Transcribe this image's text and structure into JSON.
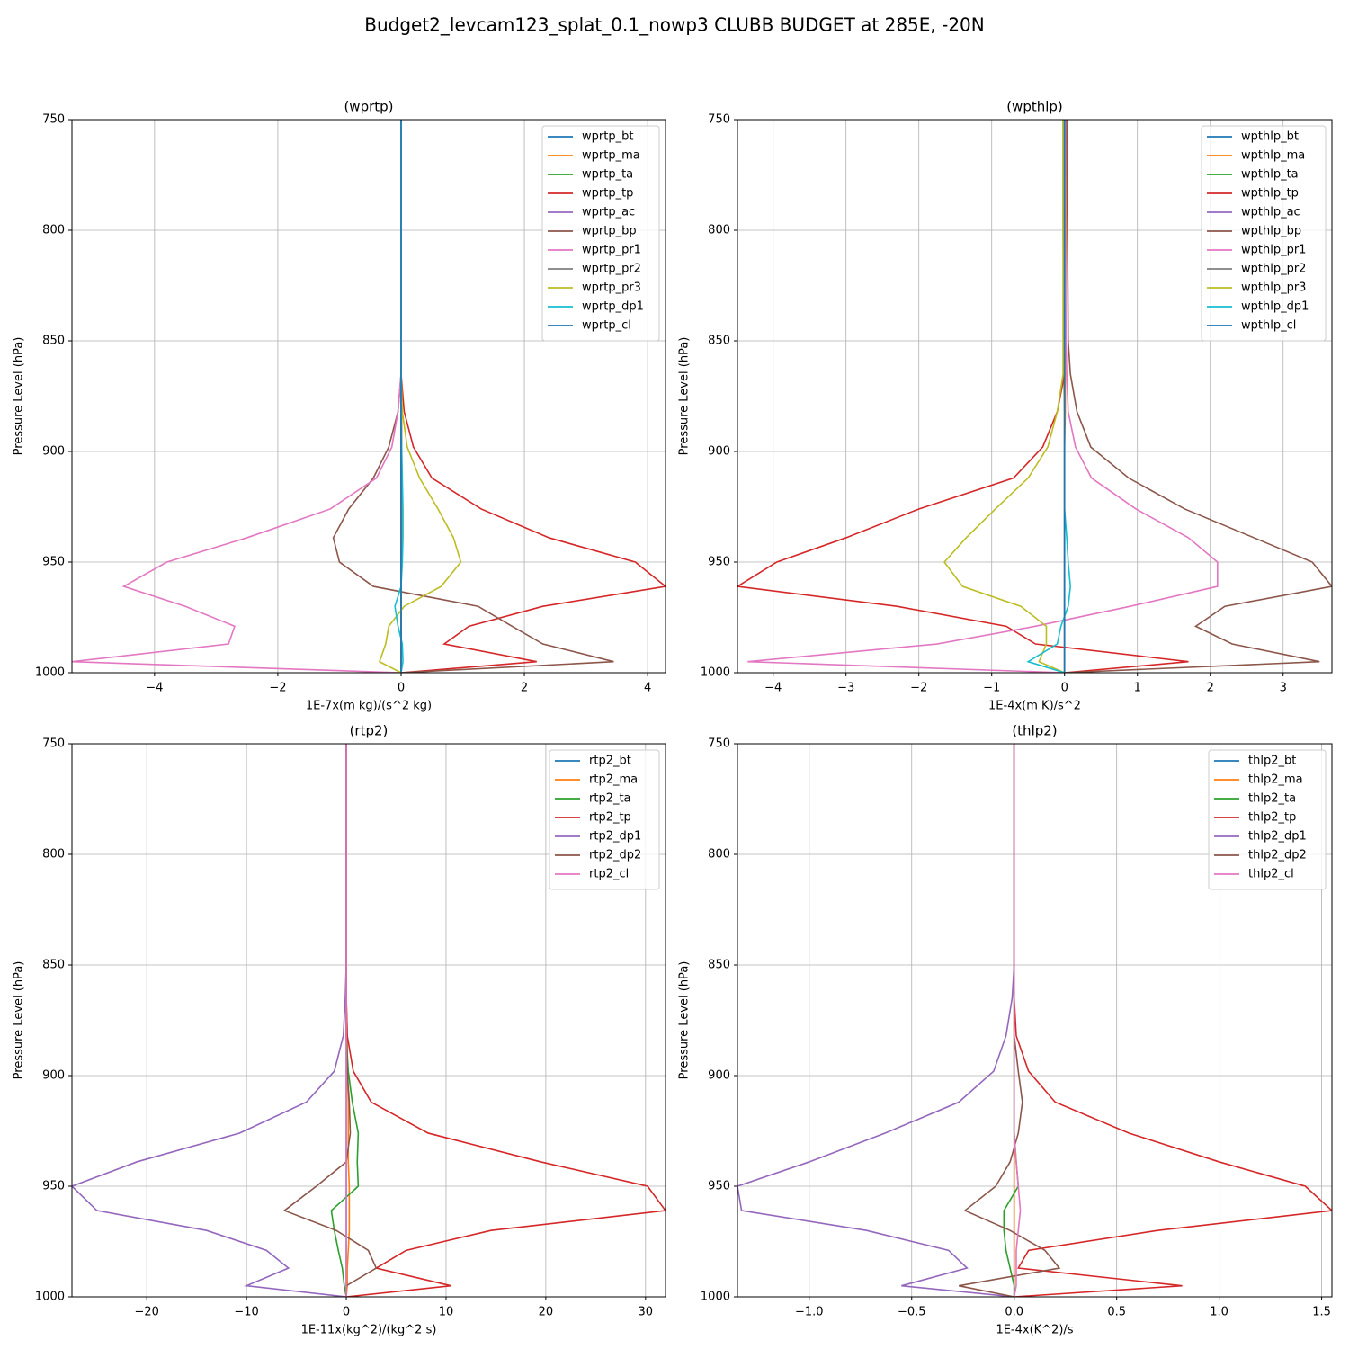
{
  "title": "Budget2_levcam123_splat_0.1_nowp3 CLUBB BUDGET at 285E, -20N",
  "chart_data": [
    {
      "type": "line",
      "title": "(wprtp)",
      "xlabel": "1E-7x(m kg)/(s^2 kg)",
      "ylabel": "Pressure Level (hPa)",
      "y": [
        750,
        800,
        850,
        865,
        882,
        898,
        912,
        926,
        939,
        950,
        961,
        970,
        979,
        987,
        995,
        1000
      ],
      "xlim": [
        -5.34,
        4.29
      ],
      "xticks": [
        {
          "value": -4,
          "label": "−4"
        },
        {
          "value": -2,
          "label": "−2"
        },
        0,
        2,
        4
      ],
      "ylim": [
        1000,
        750
      ],
      "yticks": [
        750,
        800,
        850,
        900,
        950,
        1000
      ],
      "grid": true,
      "legend": "upper right",
      "series": [
        {
          "name": "wprtp_bt",
          "color": "#1f77b4",
          "values": [
            0,
            0,
            0,
            0,
            0,
            0,
            0,
            0,
            0,
            0,
            0,
            0,
            0,
            0,
            0,
            0
          ]
        },
        {
          "name": "wprtp_ma",
          "color": "#ff7f0e",
          "values": [
            0,
            0,
            0,
            0,
            0.01,
            0.01,
            0.01,
            0.01,
            0.01,
            0.01,
            0,
            0,
            0,
            0,
            0,
            0
          ]
        },
        {
          "name": "wprtp_ta",
          "color": "#2ca02c",
          "values": [
            0,
            0,
            0,
            0,
            0,
            0,
            0,
            0,
            0,
            0,
            0,
            0,
            0,
            0,
            0,
            0
          ]
        },
        {
          "name": "wprtp_tp",
          "color": "#d62728",
          "values": [
            0,
            0,
            0,
            0,
            0.05,
            0.2,
            0.5,
            1.3,
            2.4,
            3.8,
            4.29,
            2.3,
            1.1,
            0.7,
            2.2,
            0
          ]
        },
        {
          "name": "wprtp_ac",
          "color": "#9467bd",
          "values": [
            0,
            0,
            0,
            0,
            0,
            0,
            0,
            0,
            0,
            0,
            0,
            0,
            0,
            0,
            0,
            0
          ]
        },
        {
          "name": "wprtp_bp",
          "color": "#8c564b",
          "values": [
            0,
            0,
            0,
            0,
            -0.05,
            -0.2,
            -0.45,
            -0.85,
            -1.1,
            -1.0,
            -0.45,
            1.25,
            1.8,
            2.3,
            3.45,
            0
          ]
        },
        {
          "name": "wprtp_pr1",
          "color": "#e377c2",
          "values": [
            0,
            0,
            0,
            0,
            -0.05,
            -0.15,
            -0.4,
            -1.15,
            -2.5,
            -3.8,
            -4.5,
            -3.5,
            -2.7,
            -2.8,
            -5.34,
            0
          ]
        },
        {
          "name": "wprtp_pr2",
          "color": "#7f7f7f",
          "values": [
            0,
            0,
            0,
            0,
            0,
            0,
            0,
            0,
            0,
            0,
            0,
            0,
            0,
            0,
            0,
            0
          ]
        },
        {
          "name": "wprtp_pr3",
          "color": "#bcbd22",
          "values": [
            0,
            0,
            0,
            0,
            0.02,
            0.1,
            0.3,
            0.6,
            0.85,
            0.97,
            0.65,
            0.05,
            -0.2,
            -0.25,
            -0.35,
            0
          ]
        },
        {
          "name": "wprtp_dp1",
          "color": "#17becf",
          "values": [
            0,
            0,
            0,
            0,
            0,
            0.01,
            0.02,
            0.03,
            0.03,
            0.02,
            0,
            -0.1,
            -0.05,
            0.02,
            0.03,
            0
          ]
        },
        {
          "name": "wprtp_cl",
          "color": "#1f77b4",
          "values": [
            0,
            0,
            0,
            0,
            0,
            0,
            0,
            0,
            0,
            0,
            0,
            0,
            0,
            0,
            0,
            0
          ]
        }
      ]
    },
    {
      "type": "line",
      "title": "(wpthlp)",
      "xlabel": "1E-4x(m K)/s^2",
      "ylabel": "Pressure Level (hPa)",
      "y": [
        750,
        800,
        850,
        865,
        882,
        898,
        912,
        926,
        939,
        950,
        961,
        970,
        979,
        987,
        995,
        1000
      ],
      "xlim": [
        -4.49,
        3.67
      ],
      "xticks": [
        {
          "value": -4,
          "label": "−4"
        },
        {
          "value": -3,
          "label": "−3"
        },
        {
          "value": -2,
          "label": "−2"
        },
        {
          "value": -1,
          "label": "−1"
        },
        0,
        1,
        2,
        3
      ],
      "ylim": [
        1000,
        750
      ],
      "yticks": [
        750,
        800,
        850,
        900,
        950,
        1000
      ],
      "grid": true,
      "legend": "upper right",
      "series": [
        {
          "name": "wpthlp_bt",
          "color": "#1f77b4",
          "values": [
            0,
            0,
            0,
            0,
            0,
            0,
            0,
            0,
            0,
            0,
            0,
            0,
            0,
            0,
            0,
            0
          ]
        },
        {
          "name": "wpthlp_ma",
          "color": "#ff7f0e",
          "values": [
            0.02,
            0.02,
            0.01,
            0.01,
            0.01,
            0,
            0,
            0,
            0,
            0,
            0,
            0,
            0,
            0,
            0,
            0
          ]
        },
        {
          "name": "wpthlp_ta",
          "color": "#2ca02c",
          "values": [
            -0.02,
            -0.02,
            -0.01,
            -0.01,
            0,
            0,
            0,
            0,
            0,
            0,
            0,
            0,
            0,
            0,
            0,
            0
          ]
        },
        {
          "name": "wpthlp_tp",
          "color": "#d62728",
          "values": [
            0,
            0,
            0,
            0,
            -0.1,
            -0.3,
            -0.7,
            -2.0,
            -3.0,
            -3.95,
            -4.49,
            -2.3,
            -0.8,
            -0.4,
            1.7,
            0
          ]
        },
        {
          "name": "wpthlp_ac",
          "color": "#9467bd",
          "values": [
            0,
            0,
            0,
            0,
            0,
            0,
            0,
            0,
            0,
            0,
            0,
            0,
            0,
            0,
            0,
            0
          ]
        },
        {
          "name": "wpthlp_bp",
          "color": "#8c564b",
          "values": [
            0.03,
            0.04,
            0.05,
            0.08,
            0.17,
            0.36,
            0.88,
            1.65,
            2.6,
            3.4,
            3.67,
            2.2,
            1.8,
            2.3,
            3.5,
            0
          ]
        },
        {
          "name": "wpthlp_pr1",
          "color": "#e377c2",
          "values": [
            0.01,
            0.01,
            0.02,
            0.03,
            0.05,
            0.15,
            0.37,
            0.98,
            1.7,
            2.1,
            2.1,
            0.9,
            -0.4,
            -1.75,
            -4.35,
            0
          ]
        },
        {
          "name": "wpthlp_pr2",
          "color": "#7f7f7f",
          "values": [
            0,
            0,
            0,
            0,
            0,
            0,
            0,
            0,
            0,
            0,
            0,
            0,
            0,
            0,
            0,
            0
          ]
        },
        {
          "name": "wpthlp_pr3",
          "color": "#bcbd22",
          "values": [
            -0.02,
            -0.02,
            -0.02,
            -0.02,
            -0.1,
            -0.23,
            -0.5,
            -0.95,
            -1.35,
            -1.65,
            -1.4,
            -0.6,
            -0.25,
            -0.25,
            -0.35,
            0
          ]
        },
        {
          "name": "wpthlp_dp1",
          "color": "#17becf",
          "values": [
            0,
            0,
            0,
            0,
            0,
            0,
            0,
            0,
            0.03,
            0.05,
            0.08,
            0.05,
            -0.05,
            -0.1,
            -0.5,
            0
          ]
        },
        {
          "name": "wpthlp_cl",
          "color": "#1f77b4",
          "values": [
            0,
            0,
            0,
            0,
            0,
            0,
            0,
            0,
            0,
            0,
            0,
            0,
            0,
            0,
            0,
            0
          ]
        }
      ]
    },
    {
      "type": "line",
      "title": "(rtp2)",
      "xlabel": "1E-11x(kg^2)/(kg^2 s)",
      "ylabel": "Pressure Level (hPa)",
      "y": [
        750,
        800,
        850,
        865,
        882,
        898,
        912,
        926,
        939,
        950,
        961,
        970,
        979,
        987,
        995,
        1000
      ],
      "xlim": [
        -27.5,
        32.0
      ],
      "xticks": [
        {
          "value": -20,
          "label": "−20"
        },
        {
          "value": -10,
          "label": "−10"
        },
        0,
        10,
        20,
        30
      ],
      "ylim": [
        1000,
        750
      ],
      "yticks": [
        750,
        800,
        850,
        900,
        950,
        1000
      ],
      "grid": true,
      "legend": "upper right",
      "series": [
        {
          "name": "rtp2_bt",
          "color": "#1f77b4",
          "values": [
            0,
            0,
            0,
            0,
            0,
            0,
            0,
            0,
            0,
            0,
            0,
            0,
            0,
            0,
            0,
            0
          ]
        },
        {
          "name": "rtp2_ma",
          "color": "#ff7f0e",
          "values": [
            0,
            0,
            0,
            0,
            0.1,
            0.1,
            0.2,
            0.2,
            0.2,
            0.3,
            0.3,
            0.3,
            0.2,
            0.1,
            0.1,
            0
          ]
        },
        {
          "name": "rtp2_ta",
          "color": "#2ca02c",
          "values": [
            0,
            0,
            0,
            0,
            0,
            0.2,
            0.6,
            1.2,
            1.1,
            1.2,
            -1.5,
            -1.2,
            -0.8,
            -0.4,
            -0.2,
            0
          ]
        },
        {
          "name": "rtp2_tp",
          "color": "#d62728",
          "values": [
            0,
            0,
            0,
            0,
            0.1,
            0.7,
            2.5,
            8.2,
            19.5,
            30.2,
            32.0,
            14.5,
            6.0,
            3.0,
            10.5,
            0
          ]
        },
        {
          "name": "rtp2_dp1",
          "color": "#9467bd",
          "values": [
            0,
            0,
            0,
            -0.1,
            -0.3,
            -1.2,
            -4.0,
            -10.7,
            -21.0,
            -27.5,
            -25.0,
            -14.0,
            -8.0,
            -5.8,
            -10.0,
            0
          ]
        },
        {
          "name": "rtp2_dp2",
          "color": "#8c564b",
          "values": [
            0,
            0,
            0,
            0,
            0,
            0.1,
            0.3,
            0.4,
            0,
            -3.0,
            -6.2,
            -1.0,
            2.2,
            3.0,
            0,
            0
          ]
        },
        {
          "name": "rtp2_cl",
          "color": "#e377c2",
          "values": [
            0,
            0,
            0,
            0,
            0,
            0,
            0,
            0,
            0,
            0,
            0,
            0,
            0,
            0,
            0,
            0
          ]
        }
      ]
    },
    {
      "type": "line",
      "title": "(thlp2)",
      "xlabel": "1E-4x(K^2)/s",
      "ylabel": "Pressure Level (hPa)",
      "y": [
        750,
        800,
        850,
        865,
        882,
        898,
        912,
        926,
        939,
        950,
        961,
        970,
        979,
        987,
        995,
        1000
      ],
      "xlim": [
        -1.35,
        1.55
      ],
      "xticks": [
        {
          "value": -1,
          "label": "−1.0"
        },
        {
          "value": -0.5,
          "label": "−0.5"
        },
        {
          "value": 0,
          "label": "0.0"
        },
        0.5,
        {
          "value": 1,
          "label": "1.0"
        },
        1.5
      ],
      "ylim": [
        1000,
        750
      ],
      "yticks": [
        750,
        800,
        850,
        900,
        950,
        1000
      ],
      "grid": true,
      "legend": "upper right",
      "series": [
        {
          "name": "thlp2_bt",
          "color": "#1f77b4",
          "values": [
            0,
            0,
            0,
            0,
            0,
            0,
            0,
            0,
            0,
            0,
            0,
            0,
            0,
            0,
            0,
            0
          ]
        },
        {
          "name": "thlp2_ma",
          "color": "#ff7f0e",
          "values": [
            0,
            0,
            0,
            0,
            0,
            0,
            0,
            0,
            0,
            0,
            0,
            0,
            0,
            0,
            0,
            0
          ]
        },
        {
          "name": "thlp2_ta",
          "color": "#2ca02c",
          "values": [
            0,
            0,
            0,
            0,
            0,
            0,
            0,
            0,
            0.01,
            0.02,
            -0.05,
            -0.05,
            -0.04,
            -0.02,
            0,
            0
          ]
        },
        {
          "name": "thlp2_tp",
          "color": "#d62728",
          "values": [
            0,
            0,
            0,
            0,
            0.01,
            0.07,
            0.2,
            0.56,
            1.0,
            1.42,
            1.55,
            0.7,
            0.07,
            0.02,
            0.82,
            0
          ]
        },
        {
          "name": "thlp2_dp1",
          "color": "#9467bd",
          "values": [
            0,
            0,
            0,
            -0.01,
            -0.04,
            -0.1,
            -0.27,
            -0.63,
            -1.0,
            -1.35,
            -1.33,
            -0.72,
            -0.32,
            -0.23,
            -0.55,
            0
          ]
        },
        {
          "name": "thlp2_dp2",
          "color": "#8c564b",
          "values": [
            0,
            0,
            0,
            0,
            0,
            0.02,
            0.04,
            0.02,
            -0.02,
            -0.09,
            -0.24,
            -0.02,
            0.15,
            0.22,
            -0.27,
            0
          ]
        },
        {
          "name": "thlp2_cl",
          "color": "#e377c2",
          "values": [
            0,
            0,
            0,
            0,
            0,
            0,
            0,
            0,
            0.01,
            0.02,
            0.03,
            0.02,
            0.01,
            0.01,
            0.01,
            0
          ]
        }
      ]
    }
  ]
}
